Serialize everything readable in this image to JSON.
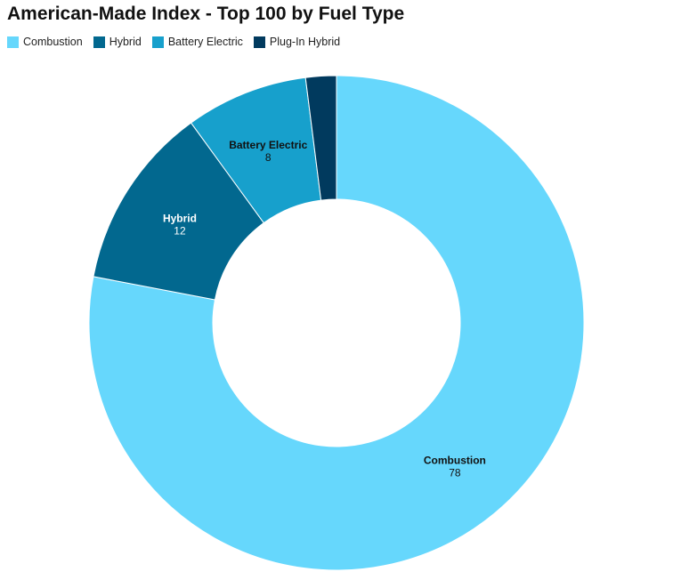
{
  "chart_data": {
    "type": "pie",
    "title": "American-Made Index - Top 100 by Fuel Type",
    "categories": [
      "Combustion",
      "Hybrid",
      "Battery Electric",
      "Plug-In Hybrid"
    ],
    "values": [
      78,
      12,
      8,
      2
    ],
    "colors": [
      "#66d7fc",
      "#02688f",
      "#17a0cc",
      "#013a5e"
    ],
    "label_colors": [
      "#111111",
      "#ffffff",
      "#111111",
      "#ffffff"
    ],
    "labeled_slices": [
      true,
      true,
      true,
      false
    ],
    "donut": true,
    "legend_position": "top-left"
  }
}
